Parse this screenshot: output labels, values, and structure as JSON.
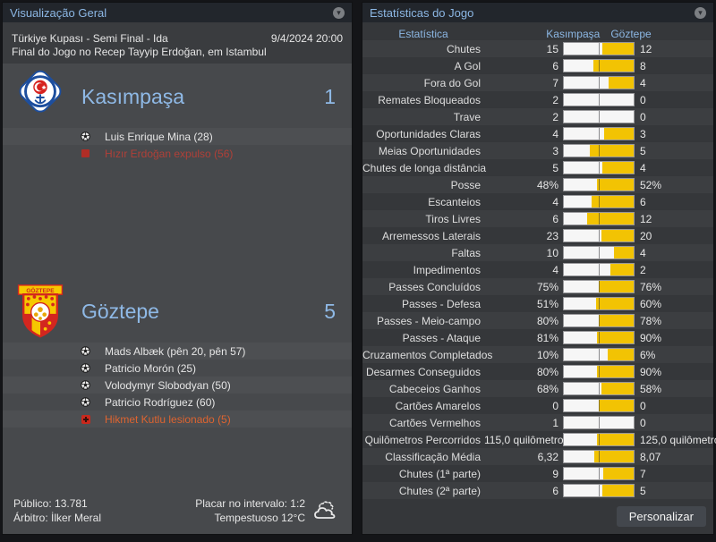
{
  "left_panel": {
    "title": "Visualização Geral",
    "competition": "Türkiye Kupası - Semi Final - Ida",
    "datetime": "9/4/2024 20:00",
    "venue": "Final do Jogo no Recep Tayyip Erdoğan, em Istambul",
    "home_team": {
      "name": "Kasımpaşa",
      "score": "1",
      "events": [
        {
          "type": "goal",
          "icon": "goal",
          "text": "Luis Enrique Mina (28)"
        },
        {
          "type": "red-card",
          "icon": "red-card",
          "text": "Hızır Erdoğan expulso (56)"
        }
      ]
    },
    "away_team": {
      "name": "Göztepe",
      "score": "5",
      "events": [
        {
          "type": "goal",
          "icon": "goal",
          "text": "Mads Albæk (pên 20, pên 57)"
        },
        {
          "type": "goal",
          "icon": "goal",
          "text": "Patricio Morón (25)"
        },
        {
          "type": "goal",
          "icon": "goal",
          "text": "Volodymyr Slobodyan (50)"
        },
        {
          "type": "goal",
          "icon": "goal",
          "text": "Patricio Rodríguez (60)"
        },
        {
          "type": "injury",
          "icon": "injury",
          "text": "Hikmet Kutlu lesionado (5)"
        }
      ]
    },
    "footer": {
      "attendance": "Público: 13.781",
      "referee": "Árbitro: İlker Meral",
      "half_time_score": "Placar no intervalo: 1:2",
      "weather": "Tempestuoso 12°C",
      "weather_icon": "storm-cloud"
    }
  },
  "right_panel": {
    "title": "Estatísticas do Jogo",
    "columns": {
      "stat": "Estatística",
      "home": "Kasımpaşa",
      "away": "Göztepe"
    },
    "rows": [
      {
        "label": "Chutes",
        "home": "15",
        "away": "12",
        "home_num": 15,
        "away_num": 12
      },
      {
        "label": "A Gol",
        "home": "6",
        "away": "8",
        "home_num": 6,
        "away_num": 8
      },
      {
        "label": "Fora do Gol",
        "home": "7",
        "away": "4",
        "home_num": 7,
        "away_num": 4
      },
      {
        "label": "Remates Bloqueados",
        "home": "2",
        "away": "0",
        "home_num": 2,
        "away_num": 0
      },
      {
        "label": "Trave",
        "home": "2",
        "away": "0",
        "home_num": 2,
        "away_num": 0
      },
      {
        "label": "Oportunidades Claras",
        "home": "4",
        "away": "3",
        "home_num": 4,
        "away_num": 3
      },
      {
        "label": "Meias Oportunidades",
        "home": "3",
        "away": "5",
        "home_num": 3,
        "away_num": 5
      },
      {
        "label": "Chutes de longa distância",
        "home": "5",
        "away": "4",
        "home_num": 5,
        "away_num": 4
      },
      {
        "label": "Posse",
        "home": "48%",
        "away": "52%",
        "home_num": 48,
        "away_num": 52
      },
      {
        "label": "Escanteios",
        "home": "4",
        "away": "6",
        "home_num": 4,
        "away_num": 6
      },
      {
        "label": "Tiros Livres",
        "home": "6",
        "away": "12",
        "home_num": 6,
        "away_num": 12
      },
      {
        "label": "Arremessos Laterais",
        "home": "23",
        "away": "20",
        "home_num": 23,
        "away_num": 20
      },
      {
        "label": "Faltas",
        "home": "10",
        "away": "4",
        "home_num": 10,
        "away_num": 4
      },
      {
        "label": "Impedimentos",
        "home": "4",
        "away": "2",
        "home_num": 4,
        "away_num": 2
      },
      {
        "label": "Passes Concluídos",
        "home": "75%",
        "away": "76%",
        "home_num": 75,
        "away_num": 76
      },
      {
        "label": "Passes - Defesa",
        "home": "51%",
        "away": "60%",
        "home_num": 51,
        "away_num": 60
      },
      {
        "label": "Passes - Meio-campo",
        "home": "80%",
        "away": "78%",
        "home_num": 80,
        "away_num": 78
      },
      {
        "label": "Passes - Ataque",
        "home": "81%",
        "away": "90%",
        "home_num": 81,
        "away_num": 90
      },
      {
        "label": "Cruzamentos Completados",
        "home": "10%",
        "away": "6%",
        "home_num": 10,
        "away_num": 6
      },
      {
        "label": "Desarmes Conseguidos",
        "home": "80%",
        "away": "90%",
        "home_num": 80,
        "away_num": 90
      },
      {
        "label": "Cabeceios Ganhos",
        "home": "68%",
        "away": "58%",
        "home_num": 68,
        "away_num": 58
      },
      {
        "label": "Cartões Amarelos",
        "home": "0",
        "away": "0",
        "home_num": 0,
        "away_num": 0
      },
      {
        "label": "Cartões Vermelhos",
        "home": "1",
        "away": "0",
        "home_num": 1,
        "away_num": 0
      },
      {
        "label": "Quilômetros Percorridos",
        "home": "115,0 quilômetros",
        "away": "125,0 quilômetros",
        "home_num": 115,
        "away_num": 125
      },
      {
        "label": "Classificação Média",
        "home": "6,32",
        "away": "8,07",
        "home_num": 6.32,
        "away_num": 8.07
      },
      {
        "label": "Chutes (1ª parte)",
        "home": "9",
        "away": "7",
        "home_num": 9,
        "away_num": 7
      },
      {
        "label": "Chutes (2ª parte)",
        "home": "6",
        "away": "5",
        "home_num": 6,
        "away_num": 5
      }
    ],
    "customize_button": "Personalizar"
  },
  "colors": {
    "accent_blue": "#8cb7e4",
    "bar_yellow": "#f2c303",
    "bar_white": "#f6f6f6",
    "red_card": "#b02d26",
    "red_text": "#b04038",
    "injury_text": "#de6430"
  }
}
